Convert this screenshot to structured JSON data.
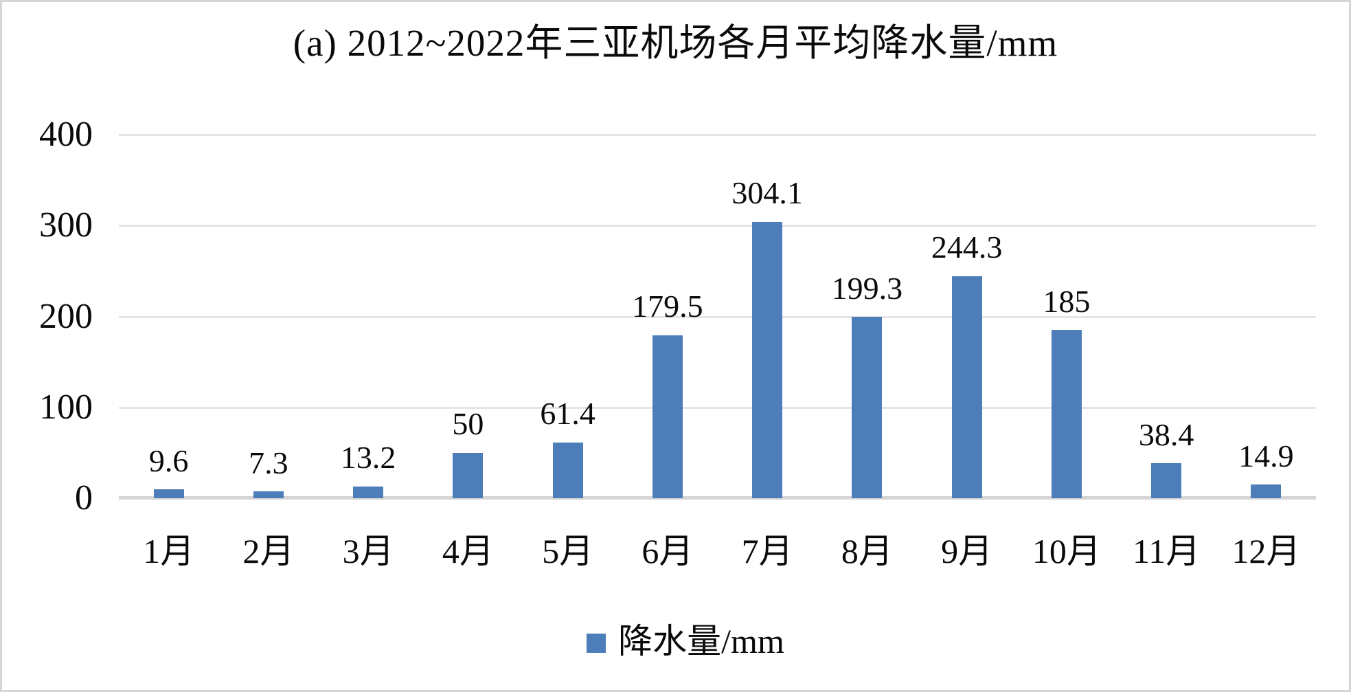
{
  "frame": {
    "background_color": "#ffffff",
    "border_color": "#d6d6d6"
  },
  "chart_data": {
    "type": "bar",
    "title": "(a) 2012~2022年三亚机场各月平均降水量/mm",
    "categories": [
      "1月",
      "2月",
      "3月",
      "4月",
      "5月",
      "6月",
      "7月",
      "8月",
      "9月",
      "10月",
      "11月",
      "12月"
    ],
    "series": [
      {
        "name": "降水量/mm",
        "values": [
          9.6,
          7.3,
          13.2,
          50,
          61.4,
          179.5,
          304.1,
          199.3,
          244.3,
          185,
          38.4,
          14.9
        ]
      }
    ],
    "value_labels": [
      "9.6",
      "7.3",
      "13.2",
      "50",
      "61.4",
      "179.5",
      "304.1",
      "199.3",
      "244.3",
      "185",
      "38.4",
      "14.9"
    ],
    "xlabel": "",
    "ylabel": "",
    "ylim": [
      0,
      400
    ],
    "yticks": [
      0,
      100,
      200,
      300,
      400
    ],
    "ytick_labels": [
      "0",
      "100",
      "200",
      "300",
      "400"
    ],
    "grid": true,
    "legend_position": "bottom",
    "bar_color": "#4d7eba",
    "gridline_color": "#e5e5e5",
    "axis_line_color": "#d5d5d5",
    "text_color": "#0a0a0a"
  },
  "legend": {
    "label": "降水量/mm"
  }
}
